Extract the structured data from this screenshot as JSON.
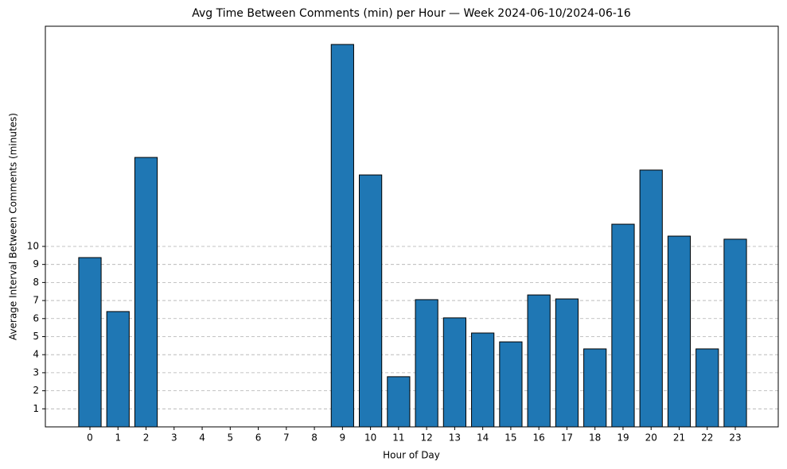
{
  "chart_data": {
    "type": "bar",
    "title": "Avg Time Between Comments (min) per Hour — Week 2024-06-10/2024-06-16",
    "x_label": "Hour of Day",
    "y_label": "Average Interval Between Comments (minutes)",
    "categories": [
      "0",
      "1",
      "2",
      "3",
      "4",
      "5",
      "6",
      "7",
      "8",
      "9",
      "10",
      "11",
      "12",
      "13",
      "14",
      "15",
      "16",
      "17",
      "18",
      "19",
      "20",
      "21",
      "22",
      "23"
    ],
    "values": [
      9.38,
      6.39,
      14.93,
      0,
      0,
      0,
      0,
      0,
      0,
      21.19,
      13.96,
      2.78,
      7.05,
      6.04,
      5.2,
      4.71,
      7.31,
      7.09,
      4.32,
      11.23,
      14.23,
      10.57,
      4.32,
      10.4
    ],
    "color": "#1f77b4",
    "edge_color": "#000000",
    "ylim": [
      0,
      22.2
    ],
    "yticks": [
      1,
      2,
      3,
      4,
      5,
      6,
      7,
      8,
      9,
      10
    ],
    "grid": true
  }
}
